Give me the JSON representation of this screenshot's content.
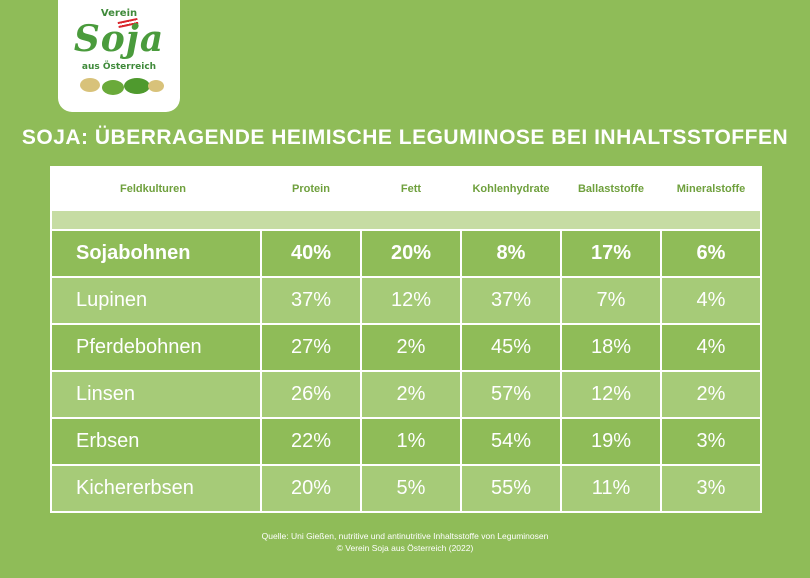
{
  "logo": {
    "top_text": "Verein",
    "main_text": "Soja",
    "bottom_text": "aus Österreich"
  },
  "title": "SOJA: ÜBERRAGENDE HEIMISCHE LEGUMINOSE BEI INHALTSSTOFFEN",
  "table": {
    "headers": [
      "Feldkulturen",
      "Protein",
      "Fett",
      "Kohlenhydrate",
      "Ballaststoffe",
      "Mineralstoffe"
    ],
    "rows": [
      [
        "Sojabohnen",
        "40%",
        "20%",
        "8%",
        "17%",
        "6%"
      ],
      [
        "Lupinen",
        "37%",
        "12%",
        "37%",
        "7%",
        "4%"
      ],
      [
        "Pferdebohnen",
        "27%",
        "2%",
        "45%",
        "18%",
        "4%"
      ],
      [
        "Linsen",
        "26%",
        "2%",
        "57%",
        "12%",
        "2%"
      ],
      [
        "Erbsen",
        "22%",
        "1%",
        "54%",
        "19%",
        "3%"
      ],
      [
        "Kichererbsen",
        "20%",
        "5%",
        "55%",
        "11%",
        "3%"
      ]
    ]
  },
  "footer": {
    "source": "Quelle: Uni Gießen, nutritive und antinutritive Inhaltsstoffe von Leguminosen",
    "copyright": "© Verein Soja aus Österreich (2022)"
  },
  "colors": {
    "background": "#8fbc58",
    "row_light": "#a6cb78",
    "header_text": "#6fa03d"
  }
}
